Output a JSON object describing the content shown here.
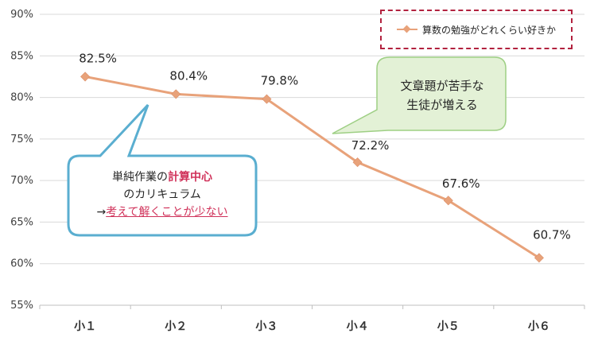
{
  "chart_data": {
    "type": "line",
    "categories": [
      "小１",
      "小２",
      "小３",
      "小４",
      "小５",
      "小６"
    ],
    "series": [
      {
        "name": "算数の勉強がどれくらい好きか",
        "values": [
          82.5,
          80.4,
          79.8,
          72.2,
          67.6,
          60.7
        ],
        "color": "#e8a27a"
      }
    ],
    "data_labels": [
      "82.5%",
      "80.4%",
      "79.8%",
      "72.2%",
      "67.6%",
      "60.7%"
    ],
    "ylim": [
      55,
      90
    ],
    "y_ticks": [
      "55%",
      "60%",
      "65%",
      "70%",
      "75%",
      "80%",
      "85%",
      "90%"
    ],
    "grid": true,
    "legend": "top-right"
  },
  "annotations": {
    "left_callout": {
      "line1_prefix": "単純作業の",
      "line1_highlight": "計算中心",
      "line2": "のカリキュラム",
      "line3_prefix": "→",
      "line3_underlined": "考えて解くことが少ない",
      "border_color": "#5aaed0",
      "highlight_color": "#d0325a"
    },
    "right_callout": {
      "line1": "文章題が苦手な",
      "line2": "生徒が増える",
      "fill_color": "#e3f1d6",
      "border_color": "#9ecf84"
    }
  }
}
